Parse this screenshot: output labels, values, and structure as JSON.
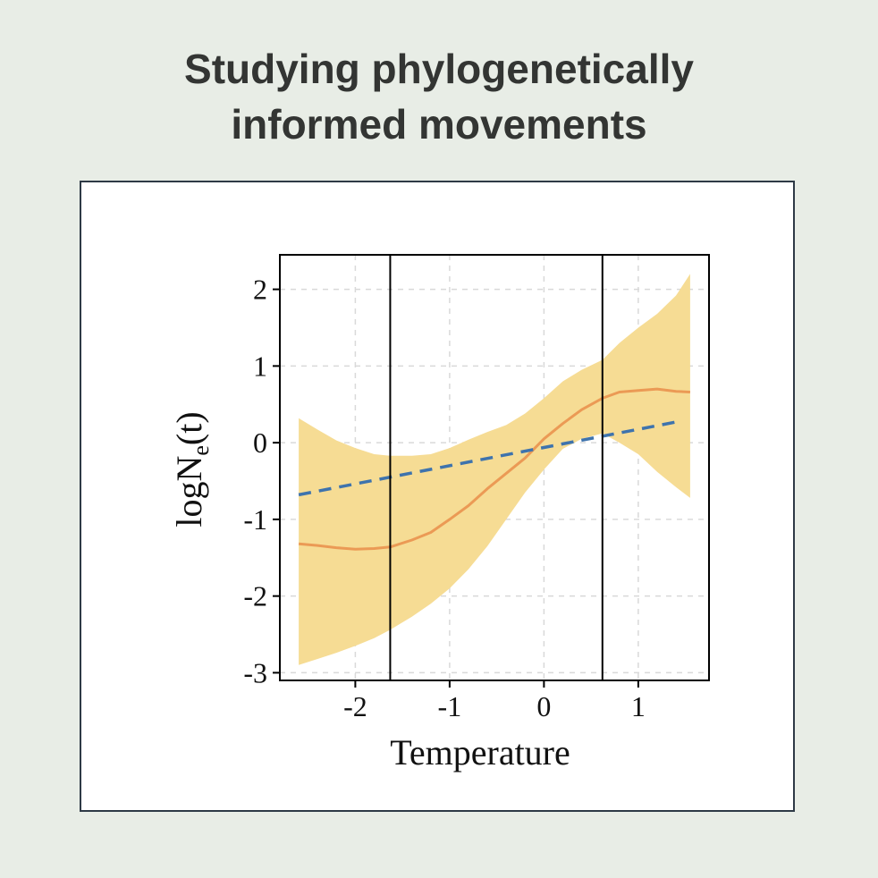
{
  "title_lines": [
    "Studying phylogenetically",
    "informed movements"
  ],
  "chart_data": {
    "type": "line",
    "xlabel": "Temperature",
    "ylabel_main": "logN",
    "ylabel_sub": "e",
    "ylabel_paren": "(t)",
    "xlim": [
      -2.8,
      1.75
    ],
    "ylim": [
      -3.1,
      2.45
    ],
    "xticks": [
      -2,
      -1,
      0,
      1
    ],
    "yticks": [
      2,
      1,
      0,
      -1,
      -2,
      -3
    ],
    "grid": true,
    "vlines": [
      -1.63,
      0.62
    ],
    "series": [
      {
        "kind": "band",
        "color": "#f6dc94",
        "x": [
          -2.6,
          -2.4,
          -2.2,
          -2.0,
          -1.8,
          -1.63,
          -1.4,
          -1.2,
          -1.0,
          -0.8,
          -0.6,
          -0.4,
          -0.2,
          0.0,
          0.2,
          0.4,
          0.62,
          0.8,
          1.0,
          1.2,
          1.4,
          1.55
        ],
        "upper": [
          0.32,
          0.17,
          0.03,
          -0.07,
          -0.15,
          -0.17,
          -0.17,
          -0.15,
          -0.07,
          0.04,
          0.14,
          0.23,
          0.38,
          0.58,
          0.8,
          0.95,
          1.08,
          1.3,
          1.5,
          1.68,
          1.92,
          2.2
        ],
        "lower": [
          -2.9,
          -2.82,
          -2.74,
          -2.65,
          -2.55,
          -2.44,
          -2.27,
          -2.1,
          -1.9,
          -1.65,
          -1.35,
          -1.0,
          -0.65,
          -0.35,
          -0.08,
          0.05,
          0.12,
          0.0,
          -0.15,
          -0.38,
          -0.58,
          -0.72
        ]
      },
      {
        "kind": "line",
        "color": "#eb9a55",
        "dash": false,
        "x": [
          -2.6,
          -2.4,
          -2.2,
          -2.0,
          -1.8,
          -1.63,
          -1.4,
          -1.2,
          -1.0,
          -0.8,
          -0.6,
          -0.4,
          -0.2,
          0.0,
          0.2,
          0.4,
          0.62,
          0.8,
          1.0,
          1.2,
          1.4,
          1.55
        ],
        "y": [
          -1.32,
          -1.34,
          -1.37,
          -1.39,
          -1.38,
          -1.36,
          -1.27,
          -1.17,
          -1.0,
          -0.82,
          -0.6,
          -0.4,
          -0.2,
          0.05,
          0.25,
          0.43,
          0.58,
          0.66,
          0.68,
          0.7,
          0.67,
          0.66
        ]
      },
      {
        "kind": "line",
        "color": "#3e73ad",
        "dash": true,
        "x": [
          -2.6,
          1.4
        ],
        "y": [
          -0.68,
          0.27
        ]
      }
    ]
  }
}
